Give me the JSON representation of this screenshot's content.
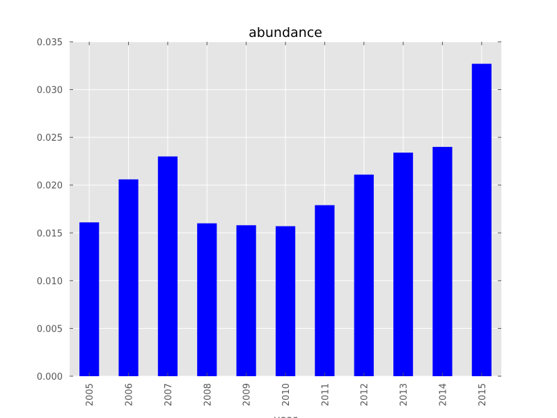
{
  "chart_data": {
    "type": "bar",
    "title": "abundance",
    "xlabel": "year",
    "ylabel": "",
    "categories": [
      "2005",
      "2006",
      "2007",
      "2008",
      "2009",
      "2010",
      "2011",
      "2012",
      "2013",
      "2014",
      "2015"
    ],
    "series": [
      {
        "values": [
          0.0161,
          0.0206,
          0.023,
          0.016,
          0.0158,
          0.0157,
          0.0179,
          0.0211,
          0.0234,
          0.024,
          0.0327
        ]
      }
    ],
    "ylim": [
      0,
      0.035
    ],
    "yticks": [
      0.0,
      0.005,
      0.01,
      0.015,
      0.02,
      0.025,
      0.03,
      0.035
    ],
    "ytick_labels": [
      "0.000",
      "0.005",
      "0.010",
      "0.015",
      "0.020",
      "0.025",
      "0.030",
      "0.035"
    ],
    "grid": true,
    "legend": "none",
    "bar_color": "#0000ff",
    "plot_background": "#e5e5e5",
    "grid_color": "#ffffff"
  }
}
